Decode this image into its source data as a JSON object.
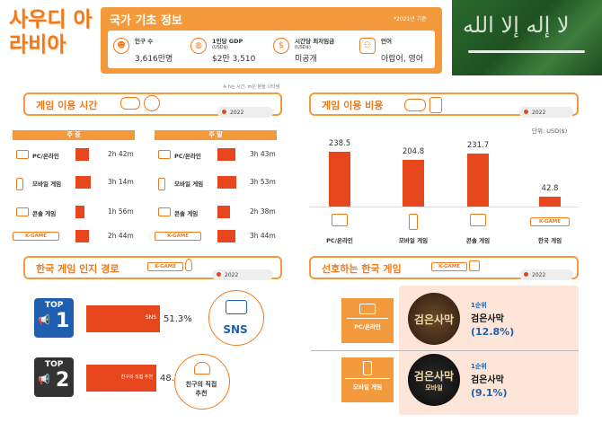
{
  "header": {
    "country": "사우디 아라비아",
    "bar_title": "국가 기초 정보",
    "year_note": "*2021년 기준",
    "info": [
      {
        "label": "인구 수",
        "sub": "",
        "value": "3,616만명",
        "icon": "people-icon"
      },
      {
        "label": "1인당 GDP",
        "sub": "(USD$)",
        "value": "$2만 3,510",
        "icon": "globe-icon"
      },
      {
        "label": "시간당 최저임금",
        "sub": "(USD$)",
        "value": "미공개",
        "icon": "coin-clock-icon"
      },
      {
        "label": "언어",
        "sub": "",
        "value": "아랍어, 영어",
        "icon": "speech-people-icon"
      }
    ]
  },
  "time_note": "※ h는 시간, m은 분을 나타냄",
  "play_time": {
    "title": "게임 이용 시간",
    "year": "2022",
    "weekday_label": "주 중",
    "weekend_label": "주 말",
    "rows": [
      {
        "label": "PC/온라인",
        "icon": "monitor-icon",
        "weekday": "2h 42m",
        "weekend": "3h 43m",
        "weekday_min": 162,
        "weekend_min": 223
      },
      {
        "label": "모바일 게임",
        "icon": "mobile-icon",
        "weekday": "3h 14m",
        "weekend": "3h 53m",
        "weekday_min": 194,
        "weekend_min": 233
      },
      {
        "label": "콘솔 게임",
        "icon": "console-icon",
        "weekday": "1h 56m",
        "weekend": "2h 38m",
        "weekday_min": 116,
        "weekend_min": 158
      },
      {
        "label": "K-GAME",
        "icon": "kgame-badge",
        "weekday": "2h 44m",
        "weekend": "3h 44m",
        "weekday_min": 164,
        "weekend_min": 224
      }
    ]
  },
  "spend": {
    "title": "게임 이용 비용",
    "year": "2022",
    "unit": "단위: USD($)"
  },
  "chart_data": {
    "type": "bar",
    "title": "게임 이용 비용",
    "ylabel": "단위: USD($)",
    "categories": [
      "PC/온라인",
      "모바일 게임",
      "콘솔 게임",
      "한국 게임"
    ],
    "values": [
      238.5,
      204.8,
      231.7,
      42.8
    ],
    "labels": [
      "238.5",
      "204.8",
      "231.7",
      "42.8"
    ],
    "ylim": [
      0,
      250
    ]
  },
  "awareness": {
    "title": "한국 게임 인지 경로",
    "badge": "K-GAME",
    "year": "2022",
    "items": [
      {
        "rank_word": "TOP",
        "rank_num": "1",
        "bar_label": "SNS",
        "pct": "51.3%",
        "value": 51.3,
        "bubble": "SNS"
      },
      {
        "rank_word": "TOP",
        "rank_num": "2",
        "bar_label": "친구의 직접 추천",
        "pct": "48.7%",
        "value": 48.7,
        "bubble": "친구의 직접\n추천"
      }
    ]
  },
  "preferred": {
    "title": "선호하는 한국 게임",
    "badge": "K-GAME",
    "year": "2022",
    "items": [
      {
        "platform": "PC/온라인",
        "rank": "1순위",
        "name": "검은사막",
        "pct": "(12.8%)",
        "logo": "검은사막",
        "logo_sub": ""
      },
      {
        "platform": "모바일 게임",
        "rank": "1순위",
        "name": "검은사막",
        "pct": "(9.1%)",
        "logo": "검은사막",
        "logo_sub": "모바일"
      }
    ]
  }
}
